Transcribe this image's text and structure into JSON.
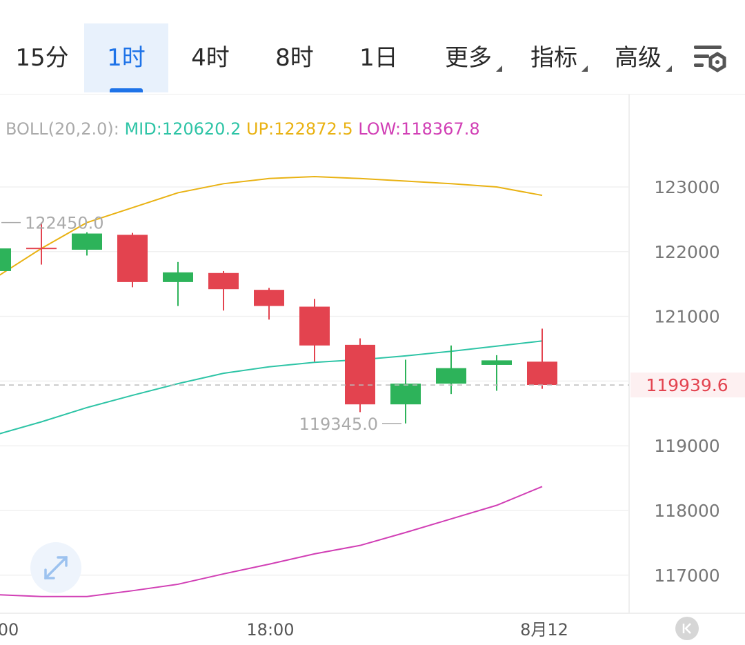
{
  "toolbar": {
    "timeframes": [
      {
        "label": "15分",
        "active": false
      },
      {
        "label": "1时",
        "active": true
      },
      {
        "label": "4时",
        "active": false
      },
      {
        "label": "8时",
        "active": false
      },
      {
        "label": "1日",
        "active": false
      }
    ],
    "dropdowns": [
      {
        "label": "更多"
      },
      {
        "label": "指标"
      },
      {
        "label": "高级"
      }
    ],
    "settings_icon": "chart-settings-icon"
  },
  "indicator": {
    "prefix": "BOLL(20,2.0):",
    "mid_label": "MID:120620.2",
    "up_label": "UP:122872.5",
    "low_label": "LOW:118367.8",
    "colors": {
      "prefix": "#aaaaaa",
      "mid": "#2ec4a6",
      "up": "#e9b213",
      "low": "#d13fb5"
    }
  },
  "price_tag": "119939.6",
  "high_marker": "122450.0",
  "low_marker": "119345.0",
  "expand_icon": "expand-arrows-icon",
  "scroll_latest_icon": "scroll-to-latest-icon",
  "colors": {
    "up": "#2db35a",
    "down": "#e3434f",
    "price_line": "#bbbbbb",
    "price_tag": "#e3434f",
    "grid": "#f0f0f0",
    "axis_text": "#777777"
  },
  "chart_data": {
    "type": "candlestick",
    "interval": "1时",
    "y_axis_ticks": [
      123000,
      122000,
      121000,
      119000,
      118000,
      117000
    ],
    "x_axis_ticks": [
      "00",
      "18:00",
      "8月12"
    ],
    "last_price": 119939.6,
    "candles": [
      {
        "open": 121700,
        "high": 122050,
        "low": 121650,
        "close": 122050
      },
      {
        "open": 122060,
        "high": 122450,
        "low": 121800,
        "close": 122040
      },
      {
        "open": 122030,
        "high": 122300,
        "low": 121940,
        "close": 122280
      },
      {
        "open": 122260,
        "high": 122290,
        "low": 121450,
        "close": 121530
      },
      {
        "open": 121530,
        "high": 121840,
        "low": 121160,
        "close": 121680
      },
      {
        "open": 121670,
        "high": 121700,
        "low": 121090,
        "close": 121420
      },
      {
        "open": 121410,
        "high": 121440,
        "low": 120950,
        "close": 121160
      },
      {
        "open": 121150,
        "high": 121270,
        "low": 120300,
        "close": 120550
      },
      {
        "open": 120560,
        "high": 120660,
        "low": 119520,
        "close": 119640
      },
      {
        "open": 119640,
        "high": 120330,
        "low": 119345,
        "close": 119960
      },
      {
        "open": 119960,
        "high": 120550,
        "low": 119800,
        "close": 120200
      },
      {
        "open": 120250,
        "high": 120400,
        "low": 119850,
        "close": 120320
      },
      {
        "open": 120300,
        "high": 120810,
        "low": 119880,
        "close": 119940
      }
    ],
    "boll_mid": [
      119170,
      119370,
      119590,
      119780,
      119960,
      120120,
      120220,
      120290,
      120330,
      120390,
      120460,
      120540,
      120620
    ],
    "boll_up": [
      121600,
      122050,
      122450,
      122680,
      122910,
      123050,
      123130,
      123160,
      123130,
      123090,
      123050,
      123000,
      122870
    ],
    "boll_low": [
      116700,
      116670,
      116670,
      116760,
      116860,
      117020,
      117170,
      117330,
      117460,
      117660,
      117870,
      118080,
      118370
    ]
  }
}
